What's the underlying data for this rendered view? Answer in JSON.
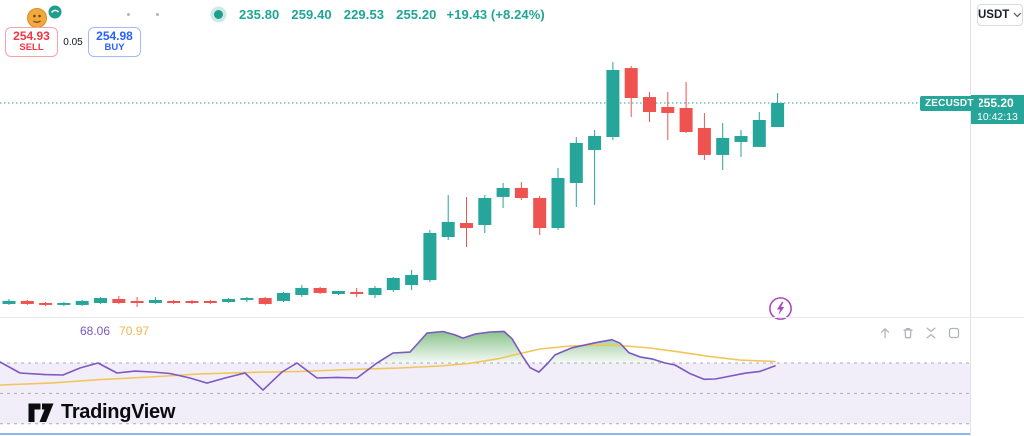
{
  "header": {
    "ohlc_values": {
      "open": "235.80",
      "high": "259.40",
      "low": "229.53",
      "close": "255.20",
      "change": "+19.43 (+8.24%)"
    },
    "currency": "USDT"
  },
  "order_panel": {
    "sell_price": "254.93",
    "sell_label": "SELL",
    "spread": "0.05",
    "buy_price": "254.98",
    "buy_label": "BUY"
  },
  "price_axis": {
    "symbol_label": "ZECUSDT",
    "last_price": "255.20",
    "countdown": "10:42:13"
  },
  "rsi_panel": {
    "rsi_value": "68.06",
    "rsi_ma_value": "70.97",
    "controls": [
      "move-pane-up",
      "delete-pane",
      "collapse-pane",
      "maximize-pane"
    ]
  },
  "footer": {
    "brand": "TradingView"
  },
  "colors": {
    "up": "#26a69a",
    "down": "#ef5350",
    "price_line": "#26a69a",
    "rsi_line": "#7e57c2",
    "rsi_ma": "#f2c55c",
    "band_fill": "rgba(126,87,194,0.10)",
    "level_line": "#9094a0",
    "overbought_fill": "#43a047",
    "sell": "#f23645",
    "buy": "#2962ff"
  },
  "chart_data": {
    "type": "candlestick",
    "symbol": "ZECUSDT",
    "last_price": 255.2,
    "ohlc_display": [
      235.8,
      259.4,
      229.53,
      255.2
    ],
    "change_display": "+19.43 (+8.24%)",
    "ylim": [
      232.5,
      260.5
    ],
    "candles_ohlc": [
      [
        234.62,
        235.13,
        234.52,
        234.93
      ],
      [
        234.93,
        235.03,
        234.52,
        234.62
      ],
      [
        234.72,
        234.82,
        234.41,
        234.52
      ],
      [
        234.52,
        234.82,
        234.41,
        234.72
      ],
      [
        234.52,
        235.03,
        234.42,
        234.93
      ],
      [
        234.72,
        235.34,
        234.62,
        235.23
      ],
      [
        235.13,
        235.44,
        234.62,
        234.72
      ],
      [
        234.93,
        235.34,
        234.31,
        234.72
      ],
      [
        234.72,
        235.34,
        234.62,
        235.03
      ],
      [
        234.93,
        235.03,
        234.62,
        234.72
      ],
      [
        234.93,
        235.03,
        234.62,
        234.72
      ],
      [
        234.93,
        235.03,
        234.62,
        234.72
      ],
      [
        234.82,
        235.23,
        234.72,
        235.13
      ],
      [
        235.03,
        235.34,
        234.82,
        235.23
      ],
      [
        235.23,
        235.34,
        234.52,
        234.62
      ],
      [
        234.93,
        235.85,
        234.82,
        235.75
      ],
      [
        235.54,
        236.56,
        235.34,
        236.26
      ],
      [
        236.26,
        236.36,
        235.64,
        235.75
      ],
      [
        235.64,
        235.95,
        235.54,
        235.95
      ],
      [
        235.85,
        236.26,
        235.34,
        235.64
      ],
      [
        235.54,
        236.46,
        235.23,
        236.26
      ],
      [
        236.05,
        237.38,
        235.85,
        237.28
      ],
      [
        236.56,
        238.1,
        236.05,
        237.59
      ],
      [
        237.07,
        242.2,
        236.87,
        241.89
      ],
      [
        241.48,
        245.78,
        241.17,
        243.02
      ],
      [
        242.91,
        245.58,
        240.45,
        242.4
      ],
      [
        242.71,
        245.78,
        241.89,
        245.47
      ],
      [
        245.58,
        247.01,
        244.45,
        246.5
      ],
      [
        246.5,
        247.11,
        245.27,
        245.47
      ],
      [
        245.47,
        245.68,
        241.68,
        242.4
      ],
      [
        242.4,
        248.54,
        242.2,
        247.52
      ],
      [
        247.01,
        251.72,
        244.55,
        251.11
      ],
      [
        250.39,
        252.44,
        244.76,
        251.82
      ],
      [
        251.72,
        259.4,
        251.41,
        258.58
      ],
      [
        258.78,
        258.99,
        253.77,
        255.71
      ],
      [
        255.81,
        256.33,
        253.25,
        254.28
      ],
      [
        254.79,
        256.33,
        251.41,
        254.18
      ],
      [
        254.69,
        257.35,
        252.13,
        252.23
      ],
      [
        252.64,
        254.18,
        249.36,
        249.88
      ],
      [
        249.88,
        253.15,
        248.34,
        251.62
      ],
      [
        251.21,
        252.44,
        249.67,
        251.82
      ],
      [
        250.7,
        254.28,
        250.7,
        253.46
      ],
      [
        252.74,
        256.22,
        252.74,
        255.2
      ]
    ],
    "indicator": {
      "name": "RSI",
      "type": "line",
      "levels": [
        70,
        50,
        30
      ],
      "range": [
        20,
        100
      ],
      "series": [
        {
          "name": "RSI",
          "color": "#7e57c2",
          "points": [
            [
              0,
              70.7
            ],
            [
              20,
              63.4
            ],
            [
              45,
              62.4
            ],
            [
              63,
              62.1
            ],
            [
              80,
              66.7
            ],
            [
              98,
              70.0
            ],
            [
              117,
              63.4
            ],
            [
              135,
              64.7
            ],
            [
              152,
              64.1
            ],
            [
              170,
              63.1
            ],
            [
              190,
              60.1
            ],
            [
              207,
              56.8
            ],
            [
              225,
              60.1
            ],
            [
              245,
              63.4
            ],
            [
              263,
              52.2
            ],
            [
              282,
              64.1
            ],
            [
              297,
              70.0
            ],
            [
              317,
              60.1
            ],
            [
              337,
              60.5
            ],
            [
              357,
              60.1
            ],
            [
              377,
              70.0
            ],
            [
              393,
              76.6
            ],
            [
              410,
              77.2
            ],
            [
              427,
              89.7
            ],
            [
              443,
              90.7
            ],
            [
              455,
              88.5
            ],
            [
              463,
              86.4
            ],
            [
              475,
              89.0
            ],
            [
              490,
              90.4
            ],
            [
              504,
              90.8
            ],
            [
              512,
              86.0
            ],
            [
              522,
              75.0
            ],
            [
              530,
              67.0
            ],
            [
              539,
              64.0
            ],
            [
              548,
              70.0
            ],
            [
              555,
              75.3
            ],
            [
              572,
              80.0
            ],
            [
              595,
              83.3
            ],
            [
              612,
              85.3
            ],
            [
              620,
              83.0
            ],
            [
              629,
              76.7
            ],
            [
              640,
              74.0
            ],
            [
              652,
              72.7
            ],
            [
              665,
              70.0
            ],
            [
              675,
              68.7
            ],
            [
              690,
              63.0
            ],
            [
              704,
              59.3
            ],
            [
              715,
              59.5
            ],
            [
              725,
              60.7
            ],
            [
              745,
              63.3
            ],
            [
              760,
              64.5
            ],
            [
              775,
              68.06
            ]
          ]
        },
        {
          "name": "RSI-based MA",
          "color": "#f2c55c",
          "points": [
            [
              0,
              55.5
            ],
            [
              50,
              56.8
            ],
            [
              100,
              59.1
            ],
            [
              150,
              60.8
            ],
            [
              200,
              62.8
            ],
            [
              250,
              63.8
            ],
            [
              300,
              64.4
            ],
            [
              350,
              65.7
            ],
            [
              400,
              66.7
            ],
            [
              440,
              68.0
            ],
            [
              470,
              69.8
            ],
            [
              500,
              73.0
            ],
            [
              512,
              75.0
            ],
            [
              540,
              79.2
            ],
            [
              570,
              81.2
            ],
            [
              595,
              81.8
            ],
            [
              620,
              81.5
            ],
            [
              650,
              79.9
            ],
            [
              680,
              77.2
            ],
            [
              710,
              74.2
            ],
            [
              740,
              71.9
            ],
            [
              775,
              70.97
            ]
          ]
        }
      ]
    }
  }
}
